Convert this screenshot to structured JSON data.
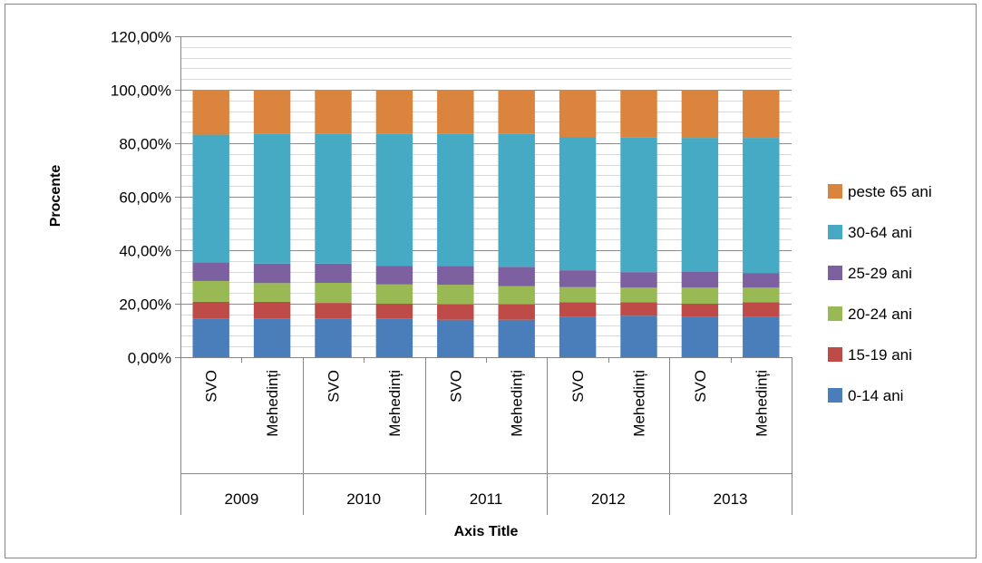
{
  "chart_data": {
    "type": "bar",
    "stacked": true,
    "title": "",
    "xlabel": "Axis Title",
    "ylabel": "Procente",
    "ylim": [
      0,
      1.2
    ],
    "ytick_step": 0.2,
    "ytick_labels": [
      "0,00%",
      "20,00%",
      "40,00%",
      "60,00%",
      "80,00%",
      "100,00%",
      "120,00%"
    ],
    "grid": true,
    "legend_position": "right",
    "groups": [
      {
        "label": "2009",
        "categories": [
          "SVO",
          "Mehedinți"
        ]
      },
      {
        "label": "2010",
        "categories": [
          "SVO",
          "Mehedinți"
        ]
      },
      {
        "label": "2011",
        "categories": [
          "SVO",
          "Mehedinți"
        ]
      },
      {
        "label": "2012",
        "categories": [
          "SVO",
          "Mehedinți"
        ]
      },
      {
        "label": "2013",
        "categories": [
          "SVO",
          "Mehedinți"
        ]
      }
    ],
    "series": [
      {
        "name": "0-14 ani",
        "color": "#4A7EBB",
        "values": [
          0.145,
          0.145,
          0.145,
          0.145,
          0.14,
          0.14,
          0.15,
          0.155,
          0.15,
          0.15
        ]
      },
      {
        "name": "15-19 ani",
        "color": "#BE4B48",
        "values": [
          0.062,
          0.062,
          0.058,
          0.055,
          0.058,
          0.058,
          0.055,
          0.05,
          0.05,
          0.055
        ]
      },
      {
        "name": "20-24 ani",
        "color": "#98B954",
        "values": [
          0.078,
          0.07,
          0.075,
          0.072,
          0.073,
          0.068,
          0.057,
          0.055,
          0.06,
          0.055
        ]
      },
      {
        "name": "25-29 ani",
        "color": "#7D60A0",
        "values": [
          0.07,
          0.073,
          0.072,
          0.07,
          0.07,
          0.072,
          0.063,
          0.058,
          0.06,
          0.055
        ]
      },
      {
        "name": "30-64 ani",
        "color": "#46AAC5",
        "values": [
          0.477,
          0.485,
          0.485,
          0.493,
          0.494,
          0.497,
          0.497,
          0.505,
          0.5,
          0.505
        ]
      },
      {
        "name": "peste 65 ani",
        "color": "#DB843D",
        "values": [
          0.168,
          0.165,
          0.165,
          0.165,
          0.165,
          0.165,
          0.178,
          0.177,
          0.18,
          0.18
        ]
      }
    ]
  }
}
